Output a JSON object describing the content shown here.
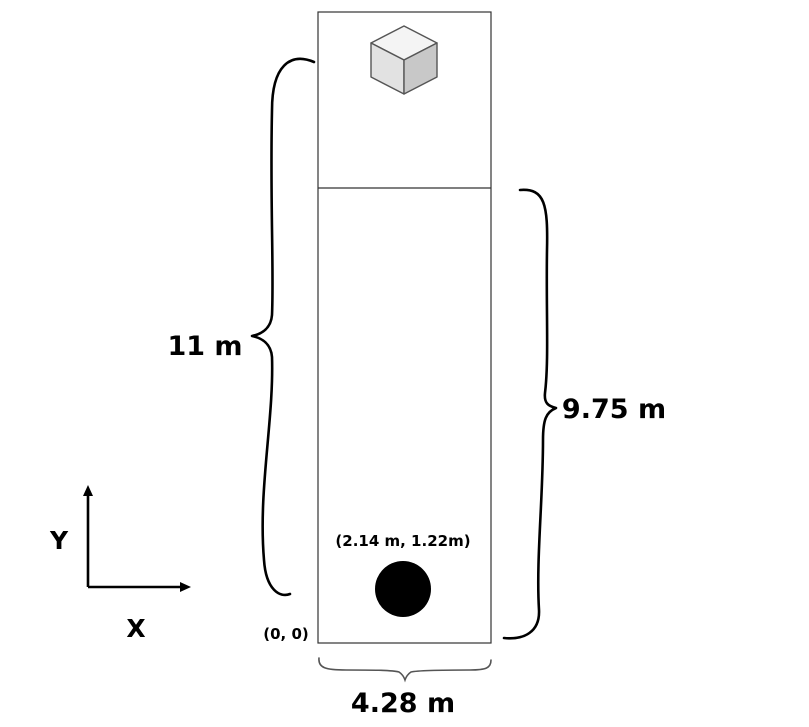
{
  "diagram": {
    "labels": {
      "total_length": "11 m",
      "lane_length": "9.75 m",
      "width": "4.28 m",
      "ball_position": "(2.14 m, 1.22m)",
      "origin": "(0, 0)",
      "x_axis": "X",
      "y_axis": "Y"
    },
    "colors": {
      "outline": "#333333",
      "ball": "#000000",
      "cube_top": "#f4f4f4",
      "cube_left": "#e2e2e2",
      "cube_right": "#c8c8c8"
    },
    "icons": {
      "target": "cube-icon",
      "ball": "ball-icon"
    }
  }
}
